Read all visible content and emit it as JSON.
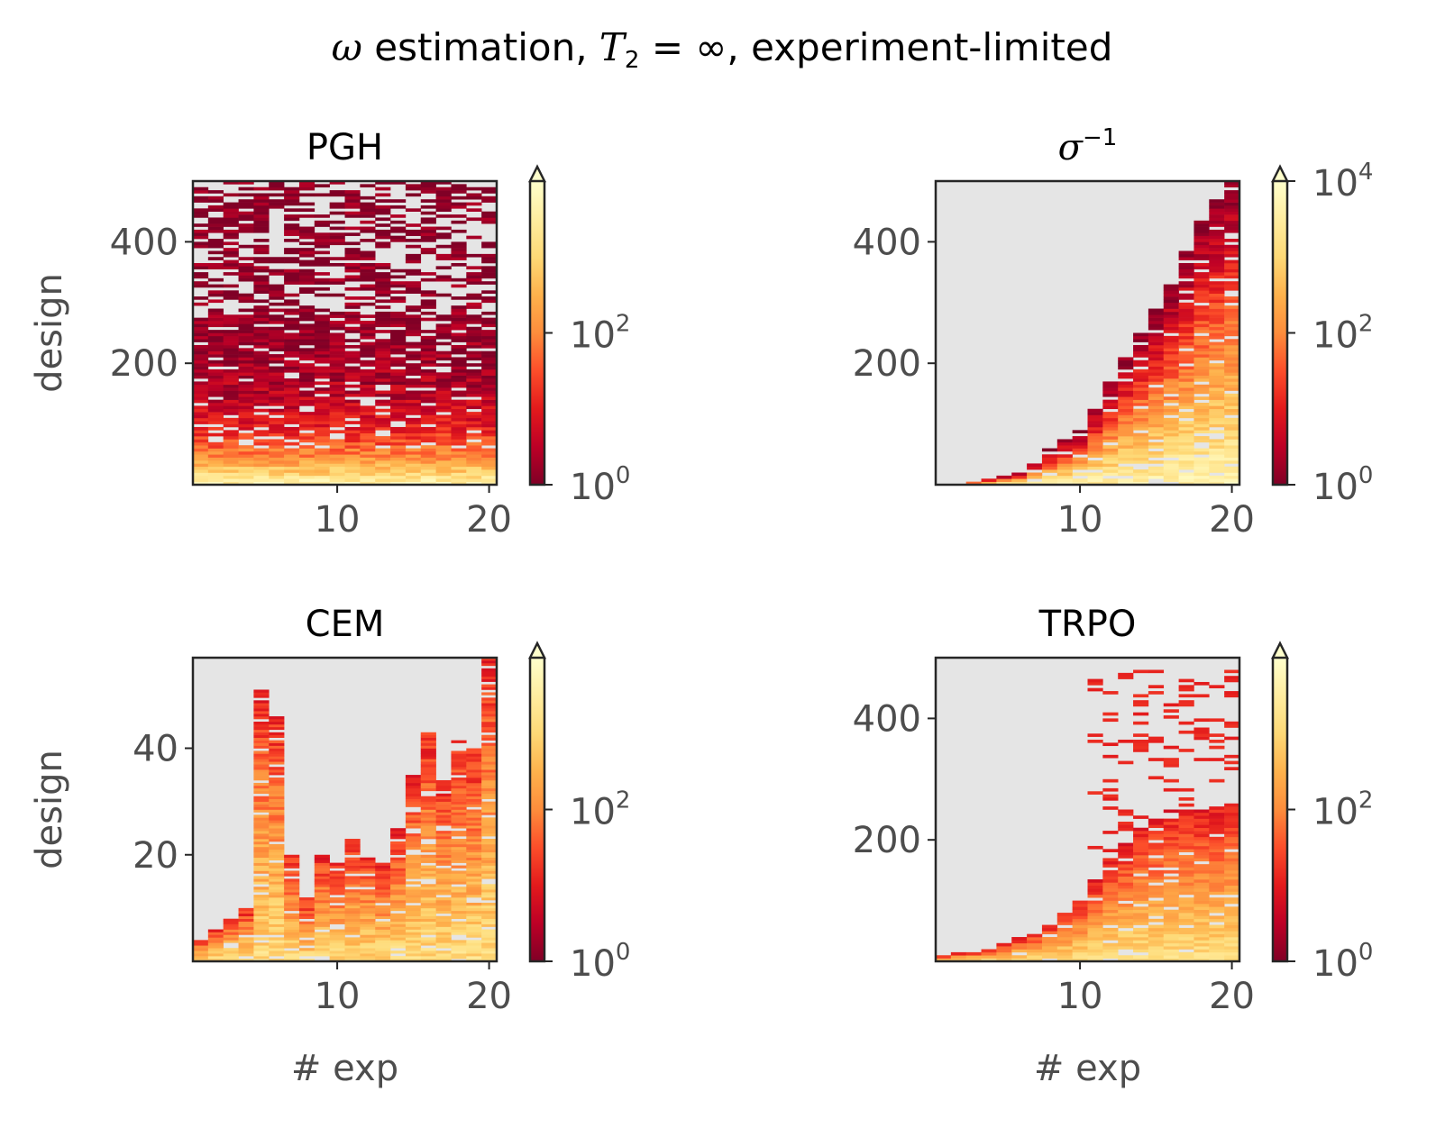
{
  "figure": {
    "title_parts": [
      "ω",
      " estimation, ",
      "T",
      "2",
      " = ",
      "∞",
      ", experiment-limited"
    ]
  },
  "colors": {
    "background": "#e5e5e5",
    "colormap": "YlOrRd_r",
    "cmap_stops": [
      "#800026",
      "#bd0026",
      "#e31a1c",
      "#fc4e2a",
      "#fd8d3c",
      "#feb24c",
      "#fed976",
      "#ffeda0",
      "#ffffcc"
    ],
    "frame": "#262626",
    "tick_text": "#4d4d4d"
  },
  "chart_data": [
    {
      "type": "heatmap",
      "title": "PGH",
      "title_sub": "",
      "xlabel": "",
      "ylabel": "design",
      "xlim": [
        0.5,
        20.5
      ],
      "ylim": [
        0,
        500
      ],
      "xticks": [
        10,
        20
      ],
      "xtick_labels": [
        "10",
        "20"
      ],
      "yticks": [
        200,
        400
      ],
      "ytick_labels": [
        "200",
        "400"
      ],
      "colorbar": {
        "scale": "log",
        "ticks": [
          {
            "base": "10",
            "exp": "0"
          },
          {
            "base": "10",
            "exp": "2"
          }
        ],
        "extend": "max"
      },
      "pattern": {
        "kind": "decay",
        "rows": 100,
        "row_height": 5,
        "x_start": 1,
        "x_end": 20,
        "scale": 75,
        "noise": 0.22,
        "fill_prob": 0.85
      }
    },
    {
      "type": "heatmap",
      "title": "σ",
      "title_sub": "−1",
      "xlabel": "",
      "ylabel": "",
      "xlim": [
        0.5,
        20.5
      ],
      "ylim": [
        0,
        500
      ],
      "xticks": [
        10,
        20
      ],
      "xtick_labels": [
        "10",
        "20"
      ],
      "yticks": [
        200,
        400
      ],
      "ytick_labels": [
        "200",
        "400"
      ],
      "colorbar": {
        "scale": "log",
        "ticks": [
          {
            "base": "10",
            "exp": "0"
          },
          {
            "base": "10",
            "exp": "2"
          },
          {
            "base": "10",
            "exp": "4"
          }
        ],
        "extend": "max"
      },
      "pattern": {
        "kind": "boundary",
        "rows": 100,
        "row_height": 5,
        "x_start": 3,
        "x_end": 20,
        "boundary": [
          [
            3,
            4
          ],
          [
            6,
            20
          ],
          [
            8,
            60
          ],
          [
            10,
            90
          ],
          [
            12,
            170
          ],
          [
            14,
            250
          ],
          [
            16,
            330
          ],
          [
            18,
            440
          ],
          [
            20,
            500
          ]
        ],
        "fill_prob": 0.9
      }
    },
    {
      "type": "heatmap",
      "title": "CEM",
      "title_sub": "",
      "xlabel": "# exp",
      "ylabel": "design",
      "xlim": [
        0.5,
        20.5
      ],
      "ylim": [
        0,
        57
      ],
      "xticks": [
        10,
        20
      ],
      "xtick_labels": [
        "10",
        "20"
      ],
      "yticks": [
        20,
        40
      ],
      "ytick_labels": [
        "20",
        "40"
      ],
      "colorbar": {
        "scale": "log",
        "ticks": [
          {
            "base": "10",
            "exp": "0"
          },
          {
            "base": "10",
            "exp": "2"
          }
        ],
        "extend": "max"
      },
      "pattern": {
        "kind": "columns",
        "rows": 114,
        "row_height": 0.5,
        "x_start": 1,
        "x_end": 20,
        "tops": [
          4,
          6,
          8,
          10,
          51,
          46,
          20,
          12,
          20,
          19,
          23,
          21,
          19,
          25,
          35,
          43,
          34,
          42,
          40,
          57
        ],
        "fill_prob": 0.88
      }
    },
    {
      "type": "heatmap",
      "title": "TRPO",
      "title_sub": "",
      "xlabel": "# exp",
      "ylabel": "",
      "xlim": [
        0.5,
        20.5
      ],
      "ylim": [
        0,
        500
      ],
      "xticks": [
        10,
        20
      ],
      "xtick_labels": [
        "10",
        "20"
      ],
      "yticks": [
        200,
        400
      ],
      "ytick_labels": [
        "200",
        "400"
      ],
      "colorbar": {
        "scale": "log",
        "ticks": [
          {
            "base": "10",
            "exp": "0"
          },
          {
            "base": "10",
            "exp": "2"
          }
        ],
        "extend": "max"
      },
      "pattern": {
        "kind": "scatter",
        "rows": 100,
        "row_height": 5,
        "x_start": 1,
        "x_end": 20,
        "boundary": [
          [
            1,
            10
          ],
          [
            4,
            20
          ],
          [
            8,
            60
          ],
          [
            10,
            100
          ],
          [
            12,
            170
          ],
          [
            14,
            220
          ],
          [
            16,
            250
          ],
          [
            18,
            250
          ],
          [
            20,
            260
          ]
        ],
        "sparse_top": 480,
        "fill_prob": 0.92
      }
    }
  ]
}
